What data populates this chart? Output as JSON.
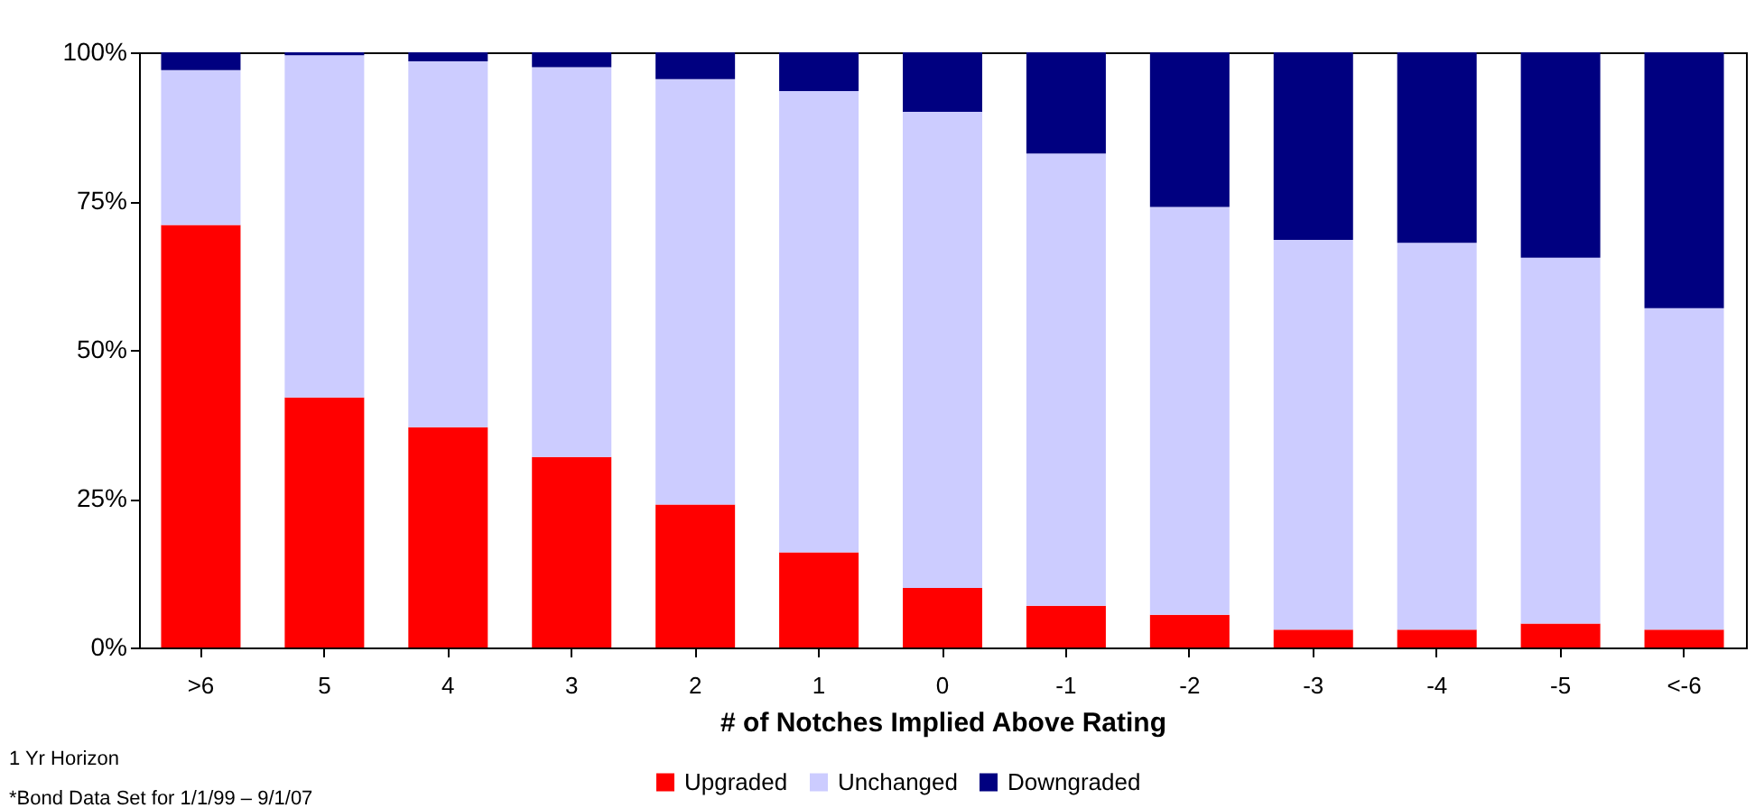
{
  "chart_data": {
    "type": "bar",
    "stacked": true,
    "xlabel": "# of Notches Implied Above Rating",
    "categories": [
      ">6",
      "5",
      "4",
      "3",
      "2",
      "1",
      "0",
      "-1",
      "-2",
      "-3",
      "-4",
      "-5",
      "<-6"
    ],
    "series": [
      {
        "name": "Upgraded",
        "color": "#ff0000",
        "values": [
          71,
          42,
          37,
          32,
          24,
          16,
          10,
          7,
          5.5,
          3,
          3,
          4,
          3
        ]
      },
      {
        "name": "Unchanged",
        "color": "#ccccff",
        "values": [
          26,
          57.5,
          61.5,
          65.5,
          71.5,
          77.5,
          80,
          76,
          68.5,
          65.5,
          65,
          61.5,
          54
        ]
      },
      {
        "name": "Downgraded",
        "color": "#000080",
        "values": [
          3,
          0.5,
          1.5,
          2.5,
          4.5,
          6.5,
          10,
          17,
          26,
          31.5,
          32,
          34.5,
          43
        ]
      }
    ],
    "ylim": [
      0,
      100
    ],
    "yticks": [
      {
        "value": 0,
        "label": "0%"
      },
      {
        "value": 25,
        "label": "25%"
      },
      {
        "value": 50,
        "label": "50%"
      },
      {
        "value": 75,
        "label": "75%"
      },
      {
        "value": 100,
        "label": "100%"
      }
    ],
    "grid": false,
    "legend": "bottom",
    "annotations": [
      "1 Yr Horizon",
      "*Bond Data Set for 1/1/99 – 9/1/07"
    ]
  }
}
